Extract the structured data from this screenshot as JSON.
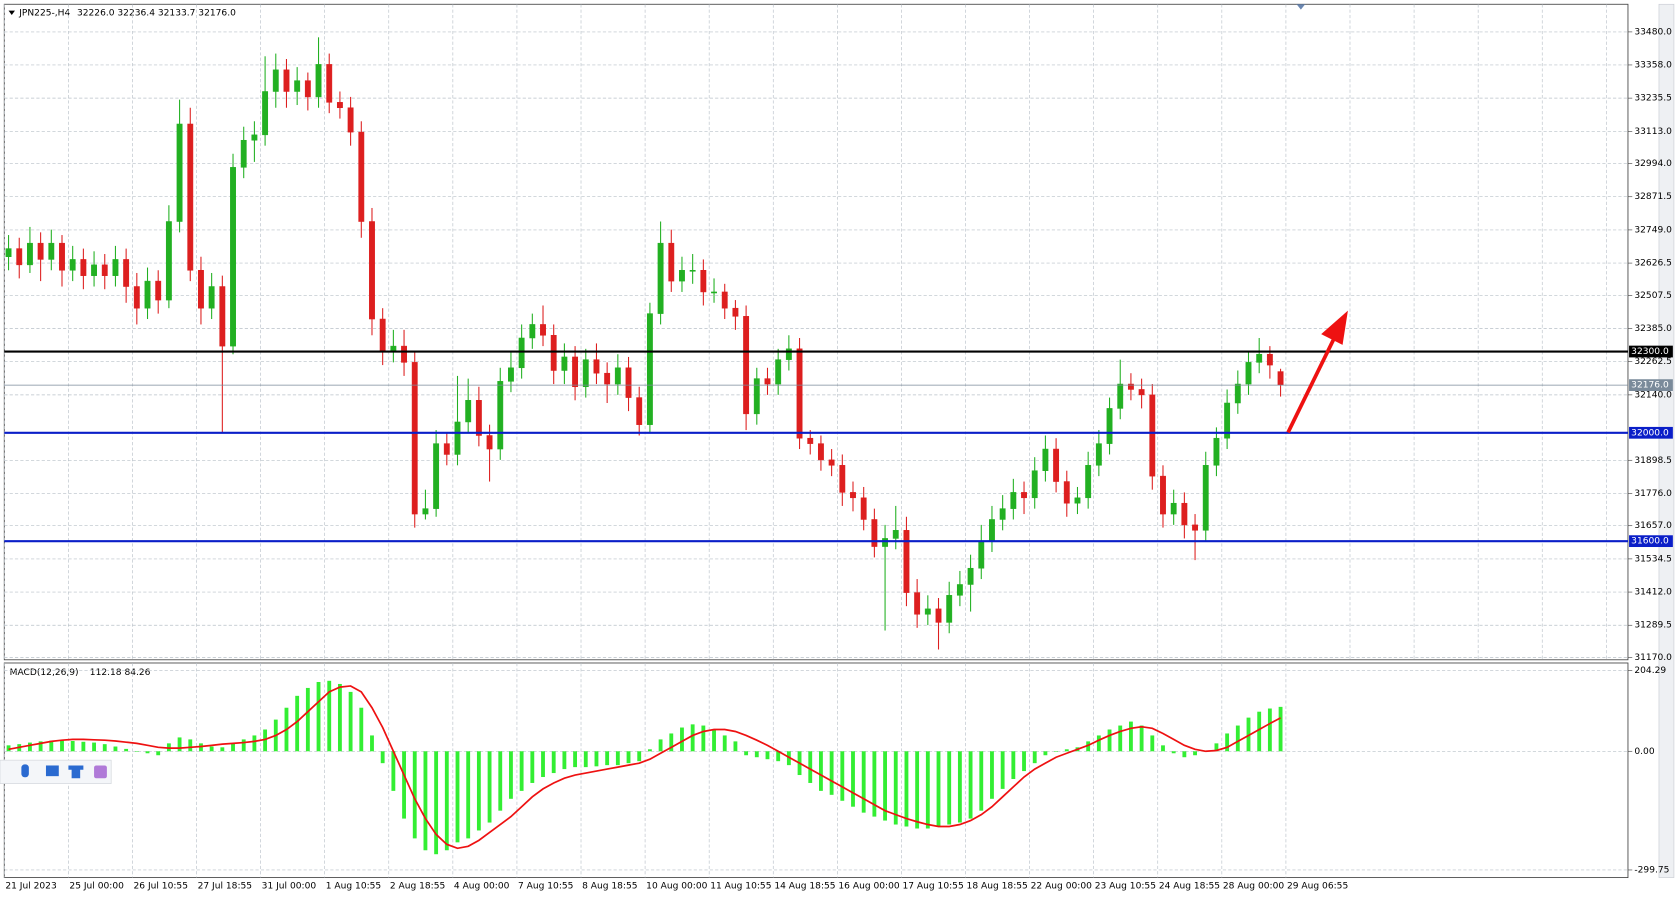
{
  "chart_data": [
    {
      "type": "candlestick",
      "title": "JPN225-,H4",
      "header_values": "32226.0 32236.4 32133.7 32176.0",
      "up_color": "#22b022",
      "down_color": "#dd1f1f",
      "grid": true,
      "ylim": [
        31162,
        33582
      ],
      "yticks": [
        {
          "value": 33480,
          "label": "33480.0"
        },
        {
          "value": 33358,
          "label": "33358.0"
        },
        {
          "value": 33235.5,
          "label": "33235.5"
        },
        {
          "value": 33113,
          "label": "33113.0"
        },
        {
          "value": 32994,
          "label": "32994.0"
        },
        {
          "value": 32871.5,
          "label": "32871.5"
        },
        {
          "value": 32749,
          "label": "32749.0"
        },
        {
          "value": 32626.5,
          "label": "32626.5"
        },
        {
          "value": 32507.5,
          "label": "32507.5"
        },
        {
          "value": 32385,
          "label": "32385.0"
        },
        {
          "value": 32262.5,
          "label": "32262.5"
        },
        {
          "value": 32140,
          "label": "32140.0"
        },
        {
          "value": 31898.5,
          "label": "31898.5"
        },
        {
          "value": 31776,
          "label": "31776.0"
        },
        {
          "value": 31657,
          "label": "31657.0"
        },
        {
          "value": 31534.5,
          "label": "31534.5"
        },
        {
          "value": 31412,
          "label": "31412.0"
        },
        {
          "value": 31289.5,
          "label": "31289.5"
        },
        {
          "value": 31170,
          "label": "31170.0"
        }
      ],
      "levels": [
        {
          "value": 32300,
          "label": "32300.0",
          "color": "#000000"
        },
        {
          "value": 32176,
          "label": "32176.0",
          "color": "#7a8a9a"
        },
        {
          "value": 32000,
          "label": "32000.0",
          "color": "#0a1ec8"
        },
        {
          "value": 31600,
          "label": "31600.0",
          "color": "#0a1ec8"
        }
      ],
      "ohlc": [
        [
          32650,
          32730,
          32600,
          32680
        ],
        [
          32680,
          32720,
          32570,
          32620
        ],
        [
          32620,
          32760,
          32590,
          32700
        ],
        [
          32700,
          32740,
          32560,
          32640
        ],
        [
          32640,
          32750,
          32600,
          32700
        ],
        [
          32700,
          32730,
          32540,
          32600
        ],
        [
          32600,
          32690,
          32560,
          32640
        ],
        [
          32640,
          32680,
          32530,
          32580
        ],
        [
          32580,
          32670,
          32540,
          32620
        ],
        [
          32620,
          32660,
          32530,
          32580
        ],
        [
          32580,
          32690,
          32540,
          32640
        ],
        [
          32640,
          32680,
          32480,
          32540
        ],
        [
          32540,
          32590,
          32400,
          32460
        ],
        [
          32460,
          32610,
          32420,
          32560
        ],
        [
          32560,
          32600,
          32440,
          32490
        ],
        [
          32490,
          32840,
          32460,
          32780
        ],
        [
          32780,
          33230,
          32740,
          33140
        ],
        [
          33140,
          33200,
          32560,
          32600
        ],
        [
          32600,
          32650,
          32400,
          32460
        ],
        [
          32460,
          32590,
          32420,
          32540
        ],
        [
          32540,
          32580,
          32000,
          32320
        ],
        [
          32320,
          33030,
          32290,
          32980
        ],
        [
          32980,
          33130,
          32940,
          33080
        ],
        [
          33080,
          33150,
          33000,
          33100
        ],
        [
          33100,
          33390,
          33060,
          33260
        ],
        [
          33260,
          33400,
          33200,
          33340
        ],
        [
          33340,
          33380,
          33200,
          33260
        ],
        [
          33260,
          33350,
          33210,
          33300
        ],
        [
          33300,
          33330,
          33190,
          33240
        ],
        [
          33240,
          33460,
          33200,
          33360
        ],
        [
          33360,
          33400,
          33180,
          33220
        ],
        [
          33220,
          33260,
          33160,
          33200
        ],
        [
          33200,
          33240,
          33060,
          33110
        ],
        [
          33110,
          33150,
          32720,
          32780
        ],
        [
          32780,
          32830,
          32360,
          32420
        ],
        [
          32420,
          32460,
          32250,
          32300
        ],
        [
          32300,
          32380,
          32260,
          32320
        ],
        [
          32320,
          32380,
          32210,
          32260
        ],
        [
          32260,
          32300,
          31650,
          31700
        ],
        [
          31700,
          31790,
          31680,
          31720
        ],
        [
          31720,
          32010,
          31690,
          31960
        ],
        [
          31960,
          32000,
          31880,
          31920
        ],
        [
          31920,
          32210,
          31880,
          32040
        ],
        [
          32040,
          32200,
          32000,
          32120
        ],
        [
          32120,
          32170,
          31950,
          31990
        ],
        [
          31990,
          32030,
          31820,
          31940
        ],
        [
          31940,
          32240,
          31900,
          32190
        ],
        [
          32190,
          32300,
          32150,
          32240
        ],
        [
          32240,
          32400,
          32200,
          32350
        ],
        [
          32350,
          32440,
          32310,
          32400
        ],
        [
          32400,
          32470,
          32320,
          32360
        ],
        [
          32360,
          32400,
          32180,
          32230
        ],
        [
          32230,
          32330,
          32180,
          32280
        ],
        [
          32280,
          32320,
          32120,
          32170
        ],
        [
          32170,
          32310,
          32130,
          32270
        ],
        [
          32270,
          32330,
          32180,
          32220
        ],
        [
          32220,
          32260,
          32110,
          32180
        ],
        [
          32180,
          32290,
          32140,
          32240
        ],
        [
          32240,
          32280,
          32080,
          32130
        ],
        [
          32130,
          32170,
          31990,
          32030
        ],
        [
          32030,
          32480,
          32000,
          32440
        ],
        [
          32440,
          32780,
          32400,
          32700
        ],
        [
          32700,
          32750,
          32520,
          32560
        ],
        [
          32560,
          32650,
          32520,
          32600
        ],
        [
          32600,
          32660,
          32550,
          32600
        ],
        [
          32600,
          32640,
          32470,
          32520
        ],
        [
          32520,
          32570,
          32480,
          32520
        ],
        [
          32520,
          32550,
          32420,
          32460
        ],
        [
          32460,
          32490,
          32380,
          32430
        ],
        [
          32430,
          32470,
          32010,
          32070
        ],
        [
          32070,
          32240,
          32030,
          32200
        ],
        [
          32200,
          32240,
          32140,
          32180
        ],
        [
          32180,
          32310,
          32140,
          32270
        ],
        [
          32270,
          32360,
          32230,
          32310
        ],
        [
          32310,
          32350,
          31940,
          31980
        ],
        [
          31980,
          32010,
          31920,
          31960
        ],
        [
          31960,
          31990,
          31860,
          31900
        ],
        [
          31900,
          31940,
          31840,
          31880
        ],
        [
          31880,
          31920,
          31730,
          31780
        ],
        [
          31780,
          31820,
          31710,
          31760
        ],
        [
          31760,
          31800,
          31640,
          31680
        ],
        [
          31680,
          31720,
          31540,
          31580
        ],
        [
          31580,
          31660,
          31270,
          31610
        ],
        [
          31610,
          31730,
          31570,
          31640
        ],
        [
          31640,
          31690,
          31360,
          31410
        ],
        [
          31410,
          31460,
          31280,
          31330
        ],
        [
          31330,
          31400,
          31290,
          31350
        ],
        [
          31350,
          31390,
          31200,
          31300
        ],
        [
          31300,
          31450,
          31260,
          31400
        ],
        [
          31400,
          31490,
          31360,
          31440
        ],
        [
          31440,
          31550,
          31340,
          31500
        ],
        [
          31500,
          31660,
          31460,
          31600
        ],
        [
          31600,
          31730,
          31560,
          31680
        ],
        [
          31680,
          31770,
          31640,
          31720
        ],
        [
          31720,
          31830,
          31680,
          31780
        ],
        [
          31780,
          31820,
          31700,
          31760
        ],
        [
          31760,
          31910,
          31720,
          31860
        ],
        [
          31860,
          31990,
          31820,
          31940
        ],
        [
          31940,
          31980,
          31780,
          31820
        ],
        [
          31820,
          31860,
          31690,
          31740
        ],
        [
          31740,
          31800,
          31700,
          31760
        ],
        [
          31760,
          31930,
          31720,
          31880
        ],
        [
          31880,
          32010,
          31840,
          31960
        ],
        [
          31960,
          32130,
          31920,
          32090
        ],
        [
          32090,
          32270,
          32050,
          32180
        ],
        [
          32180,
          32220,
          32120,
          32160
        ],
        [
          32160,
          32200,
          32090,
          32140
        ],
        [
          32140,
          32180,
          31790,
          31840
        ],
        [
          31840,
          31880,
          31650,
          31700
        ],
        [
          31700,
          31790,
          31660,
          31740
        ],
        [
          31740,
          31780,
          31610,
          31660
        ],
        [
          31660,
          31700,
          31530,
          31640
        ],
        [
          31640,
          31930,
          31600,
          31880
        ],
        [
          31880,
          32020,
          31840,
          31980
        ],
        [
          31980,
          32160,
          31940,
          32110
        ],
        [
          32110,
          32230,
          32070,
          32180
        ],
        [
          32180,
          32300,
          32140,
          32260
        ],
        [
          32260,
          32350,
          32220,
          32290
        ],
        [
          32290,
          32320,
          32200,
          32250
        ],
        [
          32226.0,
          32236.4,
          32133.7,
          32176.0
        ]
      ]
    },
    {
      "type": "macd",
      "title": "MACD(12,26,9)",
      "title_values": "112.18 84.26",
      "hist_color": "#33ee33",
      "signal_color": "#ee1111",
      "grid": true,
      "ylim": [
        -319,
        223
      ],
      "yticks": [
        {
          "value": 204.29,
          "label": "204.29"
        },
        {
          "value": 0,
          "label": "0.00"
        },
        {
          "value": -299.75,
          "label": "-299.75"
        }
      ],
      "x_labels": [
        "21 Jul 2023",
        "25 Jul 00:00",
        "26 Jul 10:55",
        "27 Jul 18:55",
        "31 Jul 00:00",
        "1 Aug 10:55",
        "2 Aug 18:55",
        "4 Aug 00:00",
        "7 Aug 10:55",
        "8 Aug 18:55",
        "10 Aug 00:00",
        "11 Aug 10:55",
        "14 Aug 18:55",
        "16 Aug 00:00",
        "17 Aug 10:55",
        "18 Aug 18:55",
        "22 Aug 00:00",
        "23 Aug 10:55",
        "24 Aug 18:55",
        "28 Aug 00:00",
        "29 Aug 06:55"
      ],
      "histogram": [
        15,
        18,
        22,
        25,
        27,
        28,
        26,
        24,
        22,
        18,
        12,
        6,
        0,
        -5,
        -10,
        20,
        35,
        30,
        20,
        12,
        10,
        20,
        30,
        40,
        55,
        80,
        110,
        140,
        160,
        175,
        178,
        170,
        150,
        110,
        40,
        -30,
        -100,
        -170,
        -220,
        -250,
        -260,
        -250,
        -230,
        -220,
        -200,
        -180,
        -150,
        -120,
        -100,
        -80,
        -65,
        -55,
        -45,
        -40,
        -40,
        -38,
        -35,
        -35,
        -30,
        -25,
        5,
        30,
        45,
        60,
        68,
        65,
        55,
        40,
        25,
        -10,
        -15,
        -20,
        -25,
        -35,
        -60,
        -80,
        -100,
        -110,
        -125,
        -140,
        -155,
        -165,
        -175,
        -185,
        -190,
        -195,
        -195,
        -190,
        -185,
        -180,
        -170,
        -150,
        -120,
        -95,
        -70,
        -50,
        -30,
        -10,
        0,
        5,
        10,
        25,
        40,
        55,
        65,
        75,
        65,
        40,
        15,
        -5,
        -15,
        -10,
        0,
        20,
        45,
        65,
        85,
        100,
        108,
        112.18
      ],
      "signal": [
        5,
        10,
        15,
        20,
        25,
        28,
        30,
        30,
        29,
        28,
        26,
        23,
        20,
        15,
        10,
        8,
        8,
        10,
        12,
        15,
        18,
        20,
        22,
        25,
        30,
        40,
        55,
        75,
        100,
        125,
        150,
        162,
        165,
        150,
        110,
        60,
        0,
        -60,
        -120,
        -170,
        -210,
        -235,
        -245,
        -240,
        -225,
        -205,
        -185,
        -165,
        -140,
        -115,
        -95,
        -80,
        -68,
        -60,
        -55,
        -50,
        -45,
        -40,
        -35,
        -30,
        -20,
        -5,
        10,
        25,
        40,
        50,
        55,
        55,
        50,
        40,
        28,
        15,
        0,
        -15,
        -30,
        -45,
        -60,
        -75,
        -90,
        -105,
        -120,
        -135,
        -150,
        -160,
        -170,
        -178,
        -185,
        -190,
        -190,
        -185,
        -175,
        -160,
        -140,
        -115,
        -90,
        -65,
        -45,
        -30,
        -15,
        -5,
        5,
        15,
        28,
        40,
        50,
        58,
        62,
        58,
        45,
        30,
        15,
        5,
        0,
        2,
        10,
        25,
        40,
        55,
        70,
        84.26
      ]
    }
  ]
}
